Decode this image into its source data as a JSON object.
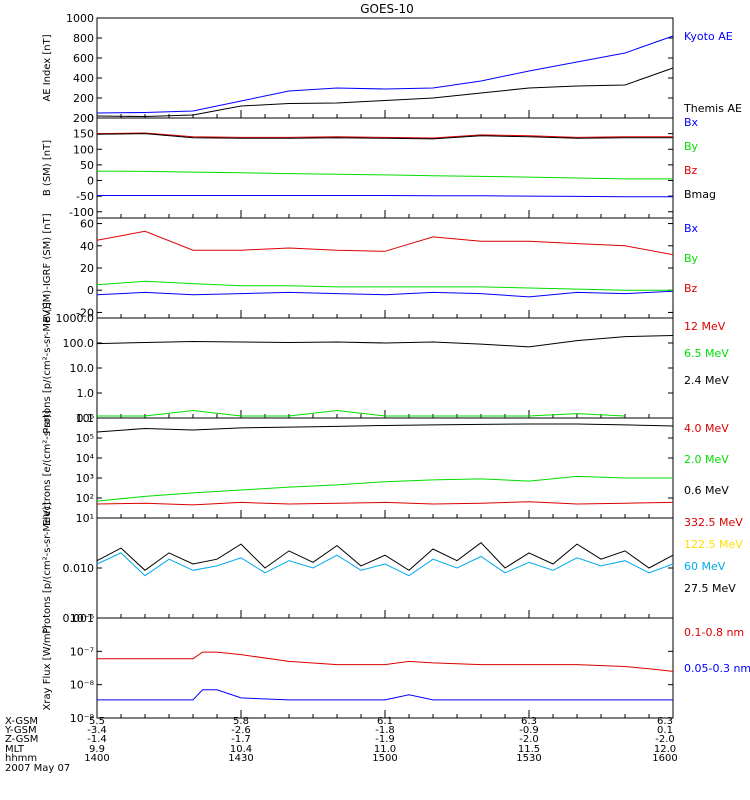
{
  "title": "GOES-10",
  "colors": {
    "black": "#000000",
    "blue": "#0000ff",
    "red": "#dd0000",
    "green": "#00dd00",
    "cyan": "#00aaee",
    "yellow": "#ffdd00"
  },
  "footer": {
    "labels": [
      "X-GSM",
      "Y-GSM",
      "Z-GSM",
      "MLT",
      "hhmm",
      "2007 May 07"
    ],
    "columns": [
      {
        "x_gsm": "5.5",
        "y_gsm": "-3.4",
        "z_gsm": "-1.4",
        "mlt": "9.9",
        "hhmm": "1400"
      },
      {
        "x_gsm": "5.8",
        "y_gsm": "-2.6",
        "z_gsm": "-1.7",
        "mlt": "10.4",
        "hhmm": "1430"
      },
      {
        "x_gsm": "6.1",
        "y_gsm": "-1.8",
        "z_gsm": "-1.9",
        "mlt": "11.0",
        "hhmm": "1500"
      },
      {
        "x_gsm": "6.3",
        "y_gsm": "-0.9",
        "z_gsm": "-2.0",
        "mlt": "11.5",
        "hhmm": "1530"
      },
      {
        "x_gsm": "6.3",
        "y_gsm": "0.1",
        "z_gsm": "-2.0",
        "mlt": "12.0",
        "hhmm": "1600"
      }
    ]
  },
  "chart_data": [
    {
      "id": "ae-index",
      "type": "line",
      "scale": "linear",
      "ylabel": "AE Index [nT]",
      "ylim": [
        0,
        1000
      ],
      "ytick_labels": [
        "0",
        "200",
        "400",
        "600",
        "800",
        "1000"
      ],
      "ytick_values": [
        0,
        200,
        400,
        600,
        800,
        1000
      ],
      "x_minutes": [
        0,
        10,
        20,
        30,
        40,
        50,
        60,
        70,
        80,
        90,
        100,
        110,
        120
      ],
      "series": [
        {
          "name": "Kyoto AE",
          "color": "#0000ff",
          "values": [
            50,
            55,
            70,
            170,
            270,
            300,
            290,
            300,
            370,
            470,
            560,
            650,
            820
          ]
        },
        {
          "name": "Themis AE",
          "color": "#000000",
          "values": [
            20,
            15,
            30,
            120,
            145,
            150,
            175,
            200,
            250,
            300,
            320,
            330,
            500
          ]
        }
      ]
    },
    {
      "id": "b-sm",
      "type": "line",
      "scale": "linear",
      "ylabel": "B (SM) [nT]",
      "ylim": [
        -120,
        200
      ],
      "ytick_labels": [
        "-100",
        "-50",
        "0",
        "50",
        "100",
        "150",
        "200"
      ],
      "ytick_values": [
        -100,
        -50,
        0,
        50,
        100,
        150,
        200
      ],
      "x_minutes": [
        0,
        10,
        20,
        30,
        40,
        50,
        60,
        70,
        80,
        90,
        100,
        110,
        120
      ],
      "series": [
        {
          "name": "Bx",
          "color": "#0000ff",
          "values": [
            -48,
            -48,
            -48,
            -48,
            -48,
            -48,
            -48,
            -49,
            -49,
            -50,
            -51,
            -52,
            -52
          ]
        },
        {
          "name": "By",
          "color": "#00dd00",
          "values": [
            30,
            29,
            27,
            25,
            22,
            20,
            18,
            15,
            13,
            11,
            8,
            5,
            5
          ]
        },
        {
          "name": "Bz",
          "color": "#dd0000",
          "values": [
            150,
            152,
            140,
            138,
            138,
            140,
            138,
            136,
            146,
            143,
            138,
            140,
            140
          ]
        },
        {
          "name": "Bmag",
          "color": "#000000",
          "values": [
            148,
            150,
            137,
            135,
            135,
            137,
            135,
            133,
            143,
            140,
            135,
            137,
            137
          ]
        }
      ]
    },
    {
      "id": "b-minus-igrf",
      "type": "line",
      "scale": "linear",
      "ylabel": "B (SM)-IGRF (SM) [nT]",
      "ylim": [
        -25,
        65
      ],
      "ytick_labels": [
        "-20",
        "0",
        "20",
        "40",
        "60"
      ],
      "ytick_values": [
        -20,
        0,
        20,
        40,
        60
      ],
      "x_minutes": [
        0,
        10,
        20,
        30,
        40,
        50,
        60,
        70,
        80,
        90,
        100,
        110,
        120
      ],
      "series": [
        {
          "name": "Bx",
          "color": "#0000ff",
          "values": [
            -4,
            -2,
            -4,
            -3,
            -2,
            -3,
            -4,
            -2,
            -3,
            -6,
            -2,
            -3,
            -1
          ]
        },
        {
          "name": "By",
          "color": "#00dd00",
          "values": [
            5,
            8,
            6,
            4,
            4,
            3,
            3,
            3,
            3,
            2,
            1,
            0,
            0
          ]
        },
        {
          "name": "Bz",
          "color": "#dd0000",
          "values": [
            45,
            53,
            36,
            36,
            38,
            36,
            35,
            48,
            44,
            44,
            42,
            40,
            32
          ]
        }
      ]
    },
    {
      "id": "protons-low",
      "type": "line",
      "scale": "log",
      "ylabel": "Protons [p/(cm²-s-sr-MeV)]",
      "ylim": [
        0.1,
        1000
      ],
      "ytick_labels": [
        "0.1",
        "1.0",
        "10.0",
        "100.0",
        "1000.0"
      ],
      "ytick_values": [
        0.1,
        1,
        10,
        100,
        1000
      ],
      "x_minutes": [
        0,
        10,
        20,
        30,
        40,
        50,
        60,
        70,
        80,
        90,
        100,
        110,
        120
      ],
      "series": [
        {
          "name": "12 MeV",
          "color": "#dd0000",
          "values": [
            null,
            null,
            null,
            null,
            null,
            null,
            0.12,
            null,
            0.12,
            null,
            0.12,
            null,
            null
          ]
        },
        {
          "name": "6.5 MeV",
          "color": "#00dd00",
          "values": [
            0.12,
            0.12,
            0.2,
            0.12,
            0.12,
            0.2,
            0.12,
            0.12,
            0.12,
            0.12,
            0.15,
            0.12,
            null
          ]
        },
        {
          "name": "2.4 MeV",
          "color": "#000000",
          "values": [
            95,
            105,
            115,
            110,
            105,
            110,
            100,
            110,
            90,
            70,
            125,
            180,
            200
          ]
        }
      ]
    },
    {
      "id": "electrons",
      "type": "line",
      "scale": "log",
      "ylabel": "Electrons [e/(cm²-s-sr)]",
      "ylim": [
        10,
        1000000
      ],
      "ytick_labels": [
        "10¹",
        "10²",
        "10³",
        "10⁴",
        "10⁵",
        "10⁶"
      ],
      "ytick_values": [
        10,
        100,
        1000,
        10000,
        100000,
        1000000
      ],
      "x_minutes": [
        0,
        10,
        20,
        30,
        40,
        50,
        60,
        70,
        80,
        90,
        100,
        110,
        120
      ],
      "series": [
        {
          "name": "4.0 MeV",
          "color": "#dd0000",
          "values": [
            50,
            55,
            45,
            60,
            50,
            55,
            60,
            50,
            55,
            65,
            50,
            55,
            60
          ]
        },
        {
          "name": "2.0 MeV",
          "color": "#00dd00",
          "values": [
            70,
            120,
            180,
            250,
            350,
            450,
            650,
            800,
            900,
            700,
            1200,
            1000,
            1000
          ]
        },
        {
          "name": "0.6 MeV",
          "color": "#000000",
          "values": [
            200000,
            300000,
            250000,
            320000,
            350000,
            380000,
            420000,
            450000,
            480000,
            500000,
            500000,
            450000,
            400000
          ]
        }
      ]
    },
    {
      "id": "protons-high",
      "type": "line",
      "scale": "log",
      "ylabel": "Protons [p/(cm²-s-sr-MeV)]",
      "ylim": [
        0.001,
        0.1
      ],
      "ytick_labels": [
        "0.001",
        "0.010"
      ],
      "ytick_values": [
        0.001,
        0.01
      ],
      "x_minutes": [
        0,
        5,
        10,
        15,
        20,
        25,
        30,
        35,
        40,
        45,
        50,
        55,
        60,
        65,
        70,
        75,
        80,
        85,
        90,
        95,
        100,
        105,
        110,
        115,
        120
      ],
      "series": [
        {
          "name": "332.5 MeV",
          "color": "#dd0000",
          "values": []
        },
        {
          "name": "122.5 MeV",
          "color": "#ffdd00",
          "values": []
        },
        {
          "name": "60 MeV",
          "color": "#00aaee",
          "values": [
            0.012,
            0.02,
            0.007,
            0.015,
            0.009,
            0.011,
            0.016,
            0.008,
            0.014,
            0.01,
            0.018,
            0.009,
            0.012,
            0.007,
            0.015,
            0.01,
            0.017,
            0.008,
            0.013,
            0.009,
            0.016,
            0.011,
            0.014,
            0.008,
            0.012
          ]
        },
        {
          "name": "27.5 MeV",
          "color": "#000000",
          "values": [
            0.014,
            0.025,
            0.009,
            0.02,
            0.012,
            0.015,
            0.03,
            0.01,
            0.022,
            0.013,
            0.028,
            0.011,
            0.018,
            0.009,
            0.024,
            0.014,
            0.032,
            0.01,
            0.02,
            0.012,
            0.03,
            0.015,
            0.022,
            0.01,
            0.018
          ]
        }
      ]
    },
    {
      "id": "xray",
      "type": "line",
      "scale": "log",
      "ylabel": "Xray Flux [W/m²]",
      "ylim": [
        1e-09,
        1e-06
      ],
      "ytick_labels": [
        "10⁻⁹",
        "10⁻⁸",
        "10⁻⁷",
        "10⁻⁶"
      ],
      "ytick_values": [
        1e-09,
        1e-08,
        1e-07,
        1e-06
      ],
      "x_minutes": [
        0,
        10,
        20,
        22,
        25,
        30,
        40,
        50,
        60,
        65,
        70,
        80,
        90,
        100,
        110,
        115,
        120
      ],
      "series": [
        {
          "name": "0.1-0.8 nm",
          "color": "#dd0000",
          "values": [
            6e-08,
            6e-08,
            6e-08,
            9.5e-08,
            9.5e-08,
            8e-08,
            5e-08,
            4e-08,
            4e-08,
            5e-08,
            4.5e-08,
            4e-08,
            4e-08,
            4e-08,
            3.5e-08,
            3e-08,
            2.5e-08
          ]
        },
        {
          "name": "0.05-0.3 nm",
          "color": "#0000ff",
          "values": [
            3.5e-09,
            3.5e-09,
            3.5e-09,
            7e-09,
            7e-09,
            4e-09,
            3.5e-09,
            3.5e-09,
            3.5e-09,
            5e-09,
            3.5e-09,
            3.5e-09,
            3.5e-09,
            3.5e-09,
            3.5e-09,
            3.5e-09,
            3.5e-09
          ]
        }
      ]
    }
  ]
}
